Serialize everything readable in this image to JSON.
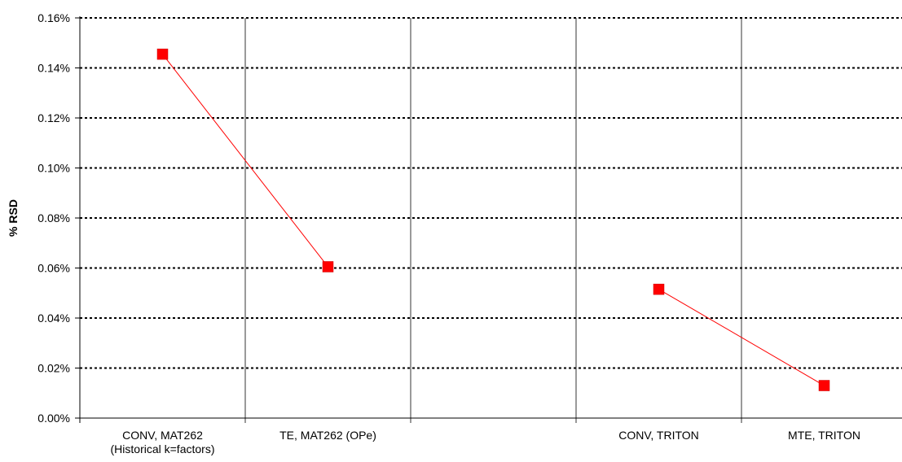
{
  "chart_data": {
    "type": "line",
    "title": "",
    "xlabel": "",
    "ylabel": "% RSD",
    "ylim": [
      0,
      0.16
    ],
    "yticks": [
      "0.00%",
      "0.02%",
      "0.04%",
      "0.06%",
      "0.08%",
      "0.10%",
      "0.12%",
      "0.14%",
      "0.16%"
    ],
    "categories": [
      [
        "CONV, MAT262",
        "(Historical k=factors)"
      ],
      [
        "TE, MAT262 (OPe)"
      ],
      [
        ""
      ],
      [
        "CONV, TRITON"
      ],
      [
        "MTE, TRITON"
      ]
    ],
    "series": [
      {
        "values": [
          0.1455,
          0.0605,
          null,
          0.0515,
          0.013
        ],
        "color": "#ff0000"
      }
    ],
    "grid": {
      "horizontal": "dotted",
      "vertical_separators": true
    },
    "legend": "none"
  }
}
